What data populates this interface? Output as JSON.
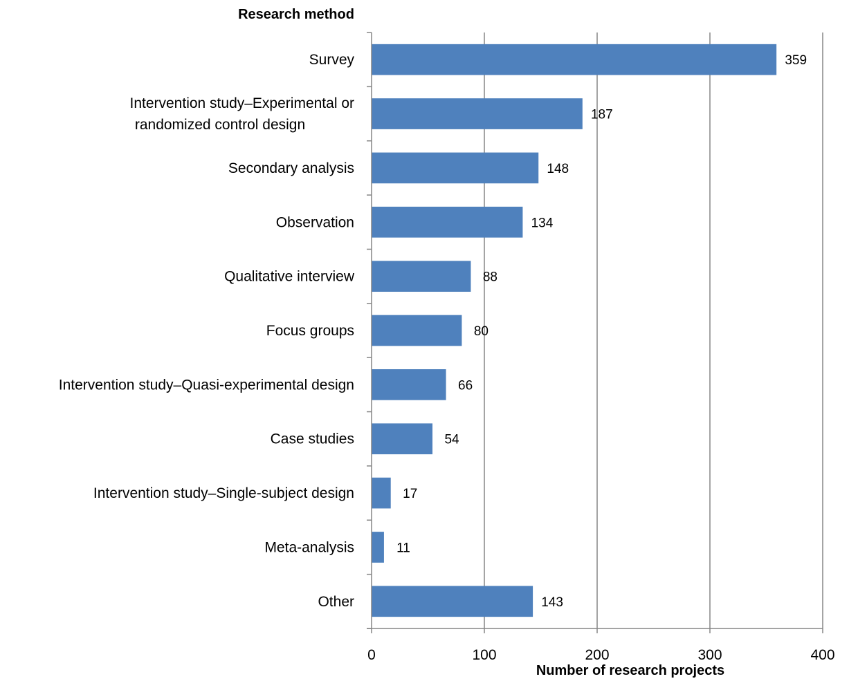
{
  "chart_data": {
    "type": "bar",
    "orientation": "horizontal",
    "ylabel": "Research method",
    "xlabel": "Number of research projects",
    "categories": [
      [
        "Survey"
      ],
      [
        "Intervention study–Experimental or",
        "randomized control design"
      ],
      [
        "Secondary analysis"
      ],
      [
        "Observation"
      ],
      [
        "Qualitative interview"
      ],
      [
        "Focus groups"
      ],
      [
        "Intervention study–Quasi-experimental design"
      ],
      [
        "Case studies"
      ],
      [
        "Intervention study–Single-subject design"
      ],
      [
        "Meta-analysis"
      ],
      [
        "Other"
      ]
    ],
    "values": [
      359,
      187,
      148,
      134,
      88,
      80,
      66,
      54,
      17,
      11,
      143
    ],
    "xlim": [
      0,
      400
    ],
    "xticks": [
      0,
      100,
      200,
      300,
      400
    ],
    "grid": "vertical",
    "legend": "none",
    "bar_color": "#4F81BD"
  }
}
